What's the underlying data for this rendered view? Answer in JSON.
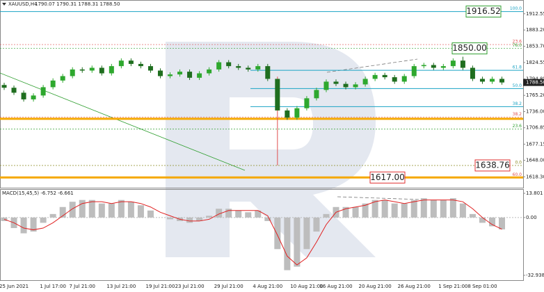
{
  "chart_data": [
    {
      "type": "candlestick",
      "title": "XAUUSD,H4",
      "subtitle": "1790.07 1790.31 1788.31 1788.50",
      "categories": [
        null,
        "25 Jun 2021",
        null,
        null,
        null,
        "1 Jul 17:00",
        null,
        null,
        "7 Jul 21:00",
        null,
        null,
        null,
        "13 Jul 21:00",
        null,
        null,
        null,
        "19 Jul 21:00",
        null,
        null,
        "23 Jul 21:00",
        null,
        null,
        null,
        "29 Jul 21:00",
        null,
        null,
        null,
        "4 Aug 21:00",
        null,
        null,
        null,
        "10 Aug 21:00",
        null,
        null,
        "16 Aug 21:00",
        null,
        null,
        null,
        "20 Aug 21:00",
        null,
        null,
        null,
        "26 Aug 21:00",
        null,
        null,
        null,
        "1 Sep 21:00",
        null,
        null,
        "8 Sep 01:00",
        null,
        null
      ],
      "open": [
        1784,
        1779,
        1770,
        1758,
        1765,
        1780,
        1792,
        1800,
        1812,
        1810,
        1815,
        1805,
        1818,
        1828,
        1822,
        1818,
        1810,
        1800,
        1803,
        1808,
        1797,
        1805,
        1812,
        1825,
        1818,
        1815,
        1812,
        1818,
        1795,
        1738,
        1725,
        1742,
        1760,
        1775,
        1790,
        1786,
        1780,
        1785,
        1795,
        1802,
        1798,
        1790,
        1800,
        1818,
        1820,
        1815,
        1818,
        1828,
        1815,
        1795,
        1790,
        1795
      ],
      "high": [
        1788,
        1783,
        1774,
        1769,
        1784,
        1796,
        1804,
        1816,
        1816,
        1819,
        1819,
        1822,
        1832,
        1832,
        1826,
        1822,
        1814,
        1807,
        1812,
        1812,
        1809,
        1816,
        1829,
        1829,
        1822,
        1819,
        1822,
        1822,
        1799,
        1742,
        1746,
        1764,
        1779,
        1794,
        1794,
        1790,
        1789,
        1799,
        1806,
        1806,
        1802,
        1804,
        1822,
        1824,
        1824,
        1822,
        1832,
        1835,
        1819,
        1799,
        1799,
        1799
      ],
      "low": [
        1775,
        1766,
        1754,
        1754,
        1761,
        1776,
        1788,
        1796,
        1806,
        1806,
        1801,
        1801,
        1814,
        1818,
        1814,
        1806,
        1796,
        1796,
        1799,
        1793,
        1793,
        1801,
        1808,
        1814,
        1811,
        1808,
        1808,
        1791,
        1638.76,
        1721,
        1721,
        1738,
        1756,
        1771,
        1782,
        1776,
        1776,
        1781,
        1791,
        1794,
        1786,
        1786,
        1796,
        1814,
        1811,
        1811,
        1814,
        1811,
        1791,
        1786,
        1786,
        1784.5
      ],
      "close": [
        1779,
        1770,
        1758,
        1765,
        1780,
        1792,
        1800,
        1812,
        1810,
        1815,
        1805,
        1818,
        1828,
        1822,
        1818,
        1810,
        1800,
        1803,
        1808,
        1797,
        1805,
        1812,
        1825,
        1818,
        1815,
        1812,
        1818,
        1795,
        1738,
        1725,
        1742,
        1760,
        1775,
        1790,
        1786,
        1780,
        1785,
        1795,
        1802,
        1798,
        1790,
        1800,
        1818,
        1820,
        1815,
        1818,
        1828,
        1815,
        1795,
        1790,
        1795,
        1788.5
      ],
      "up_color": "#2ea82e",
      "down_color": "#1f6e1f",
      "ylim": [
        1608.6,
        1922.3
      ],
      "yticks": [
        1912.55,
        {
          "value": 1883.2,
          "label": "1883.20"
        },
        {
          "value": 1853.7,
          "label": "1853.70"
        },
        1824.55,
        1794.85,
        {
          "value": 1765.2,
          "label": "1765.20"
        },
        {
          "value": 1736,
          "label": "1736.00"
        },
        1706.85,
        1677.15,
        {
          "value": 1648,
          "label": "1648.00"
        },
        {
          "value": 1618.3,
          "label": "1618.30"
        }
      ],
      "last_price": {
        "value": 1788.5,
        "label": "1788.50"
      },
      "levels": [
        {
          "label": "100.0",
          "value": 1916.52,
          "color": "#1aa3c4"
        },
        {
          "label": "23.6",
          "value": 1857,
          "color": "#e05050"
        },
        {
          "label": "76.0",
          "value": 1849.9,
          "color": "#2e9e2e"
        },
        {
          "label": "61.8",
          "value": 1810.4,
          "color": "#1aa3c4"
        },
        {
          "label": "50.0",
          "value": 1777.6,
          "color": "#1aa3c4"
        },
        {
          "label": "38.2",
          "value": 1744.9,
          "color": "#1aa3c4"
        },
        {
          "label": "38.2",
          "value": 1726,
          "color": "#e05050"
        },
        {
          "label": "23.6",
          "value": 1704.3,
          "color": "#2e9e2e"
        },
        {
          "label": "0.0",
          "value": 1638.76,
          "color": "#8a8a20"
        },
        {
          "label": "60.0",
          "value": 1617,
          "color": "#e05050"
        }
      ],
      "support_levels": [
        1723,
        1617
      ],
      "support_color": "#f5a800",
      "price_boxes": [
        {
          "value": 1916.52,
          "color": "#2e9e2e"
        },
        {
          "value": {
            "value": 1850,
            "label": "1850.00"
          },
          "color": "#2e9e2e"
        },
        {
          "value": 1638.76,
          "color": "#e03030"
        },
        {
          "value": {
            "value": 1617,
            "label": "1617.00"
          },
          "color": "#e03030"
        }
      ]
    },
    {
      "type": "macd",
      "title": "MACD(15,45,5) -6.752 -6.661",
      "series": [
        {
          "color": "#bdbdbd",
          "values": [
            -2,
            -6,
            -9,
            -8,
            -3,
            2,
            6,
            9,
            10,
            10,
            8,
            8,
            10,
            9,
            7,
            4,
            0,
            -1,
            -2,
            -3,
            -2,
            1,
            5,
            5,
            4,
            3,
            4,
            -2,
            -18,
            -30,
            -28,
            -18,
            -8,
            2,
            6,
            6,
            6,
            8,
            10,
            10,
            8,
            8,
            10,
            11,
            10,
            10,
            11,
            8,
            2,
            -3,
            -5,
            -6.752
          ]
        },
        {
          "color": "#e02020",
          "values": [
            -1,
            -3,
            -6,
            -7,
            -6,
            -3,
            1,
            5,
            8,
            9,
            9,
            8,
            9,
            9,
            8,
            6,
            3,
            1,
            -1,
            -2,
            -2,
            -1,
            2,
            4,
            4,
            4,
            4,
            1,
            -10,
            -22,
            -27,
            -23,
            -14,
            -4,
            3,
            5,
            6,
            7,
            9,
            10,
            9,
            8,
            9,
            10,
            10,
            10,
            10,
            9,
            5,
            0,
            -4,
            -6.661
          ]
        }
      ],
      "ylim": [
        -36.1,
        16.2
      ],
      "yticks": [
        13.801,
        {
          "value": 0,
          "label": "0.00"
        },
        -32.938
      ]
    }
  ]
}
